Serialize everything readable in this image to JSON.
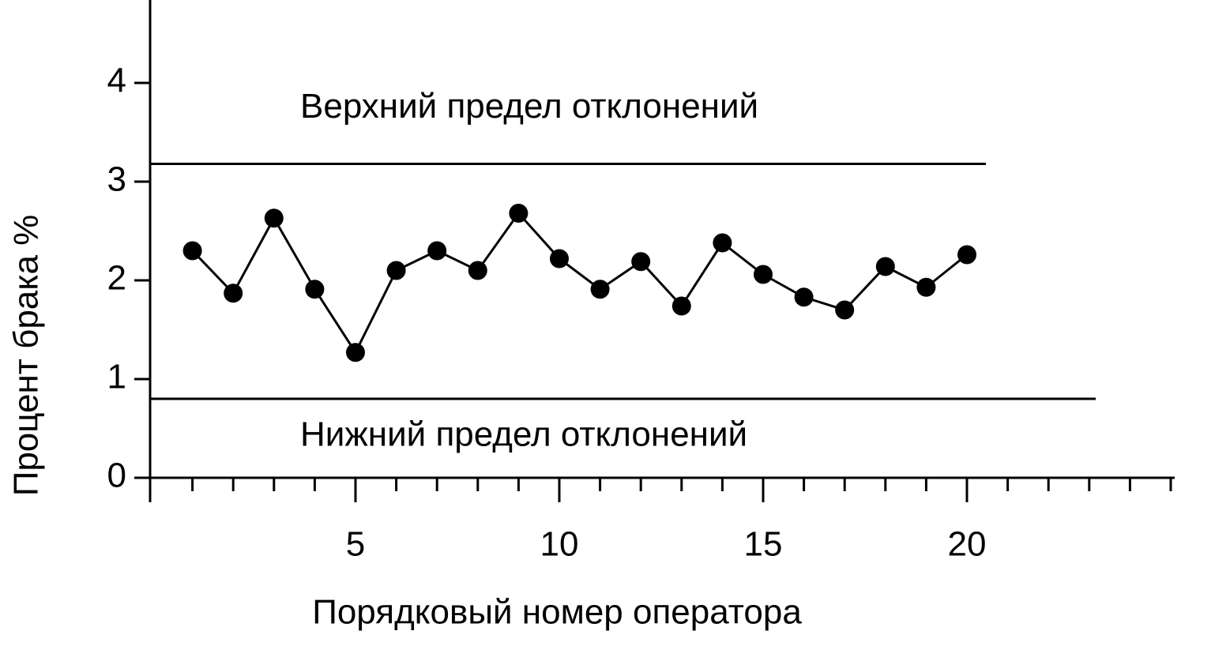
{
  "chart_data": {
    "type": "line",
    "x_label": "Порядковый номер оператора",
    "y_label": "Процент брака %",
    "x": [
      1,
      2,
      3,
      4,
      5,
      6,
      7,
      8,
      9,
      10,
      11,
      12,
      13,
      14,
      15,
      16,
      17,
      18,
      19,
      20
    ],
    "series": [
      {
        "color": "#000000",
        "values": [
          2.3,
          1.87,
          2.63,
          1.91,
          1.27,
          2.1,
          2.3,
          2.1,
          2.68,
          2.22,
          1.91,
          2.19,
          1.74,
          2.38,
          2.06,
          1.83,
          1.7,
          2.14,
          1.93,
          2.26
        ]
      }
    ],
    "reference_lines": [
      {
        "label": "Верхний предел отклонений",
        "value": 3.18
      },
      {
        "label": "Нижний предел отклонений",
        "value": 0.8
      }
    ],
    "xlim": [
      0,
      25
    ],
    "ylim": [
      0,
      4.84
    ],
    "xticks": [
      5,
      10,
      15,
      20
    ],
    "minor_xticks": [
      1,
      2,
      3,
      4,
      5,
      6,
      7,
      8,
      9,
      10,
      11,
      12,
      13,
      14,
      15,
      16,
      17,
      18,
      19,
      20,
      21,
      22,
      23,
      24,
      25
    ],
    "yticks": [
      0,
      1,
      2,
      3,
      4
    ],
    "grid": false
  }
}
